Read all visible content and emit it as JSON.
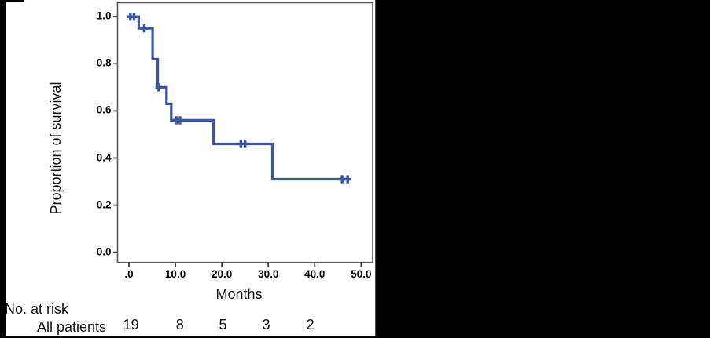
{
  "figure": {
    "outer_background": "#000000",
    "panel_background": "#ffffff"
  },
  "chart_data": {
    "type": "line",
    "subtype": "kaplan-meier-step-curve",
    "title": "",
    "xlabel": "Months",
    "ylabel": "Proportion of survival",
    "xlim": [
      -2.5,
      52.5
    ],
    "ylim": [
      -0.045,
      1.06
    ],
    "grid": false,
    "legend": false,
    "frame_color": "#5a5a5a",
    "tick_color": "#3a3a3a",
    "text_color": "#111111",
    "x_ticks": {
      "values": [
        0,
        10,
        20,
        30,
        40,
        50
      ],
      "labels": [
        ".0",
        "10.0",
        "20.0",
        "30.0",
        "40.0",
        "50.0"
      ]
    },
    "y_ticks": {
      "values": [
        0.0,
        0.2,
        0.4,
        0.6,
        0.8,
        1.0
      ],
      "labels": [
        "0.0",
        "0.2",
        "0.4",
        "0.6",
        "0.8",
        "1.0"
      ]
    },
    "series": [
      {
        "name": "All patients",
        "color": "#3b55a6",
        "step_points_month_proportion": [
          [
            0,
            1.0
          ],
          [
            2.1,
            1.0
          ],
          [
            2.1,
            0.95
          ],
          [
            5.1,
            0.95
          ],
          [
            5.1,
            0.82
          ],
          [
            6.2,
            0.82
          ],
          [
            6.2,
            0.7
          ],
          [
            8.1,
            0.7
          ],
          [
            8.1,
            0.63
          ],
          [
            9.1,
            0.63
          ],
          [
            9.1,
            0.56
          ],
          [
            18.2,
            0.56
          ],
          [
            18.2,
            0.46
          ],
          [
            30.9,
            0.46
          ],
          [
            30.9,
            0.31
          ],
          [
            47.4,
            0.31
          ]
        ],
        "censor_marks_month_proportion": [
          [
            0.3,
            1.0
          ],
          [
            1.1,
            1.0
          ],
          [
            3.3,
            0.95
          ],
          [
            6.4,
            0.7
          ],
          [
            10.2,
            0.56
          ],
          [
            11.0,
            0.56
          ],
          [
            24.1,
            0.46
          ],
          [
            25.0,
            0.46
          ],
          [
            45.9,
            0.31
          ],
          [
            47.1,
            0.31
          ]
        ]
      }
    ]
  },
  "risk_table": {
    "title": "No. at risk",
    "rows": [
      {
        "label": "All patients",
        "values": [
          "19",
          "8",
          "5",
          "3",
          "2"
        ],
        "value_months": [
          0,
          10,
          20,
          30,
          40
        ]
      }
    ]
  }
}
